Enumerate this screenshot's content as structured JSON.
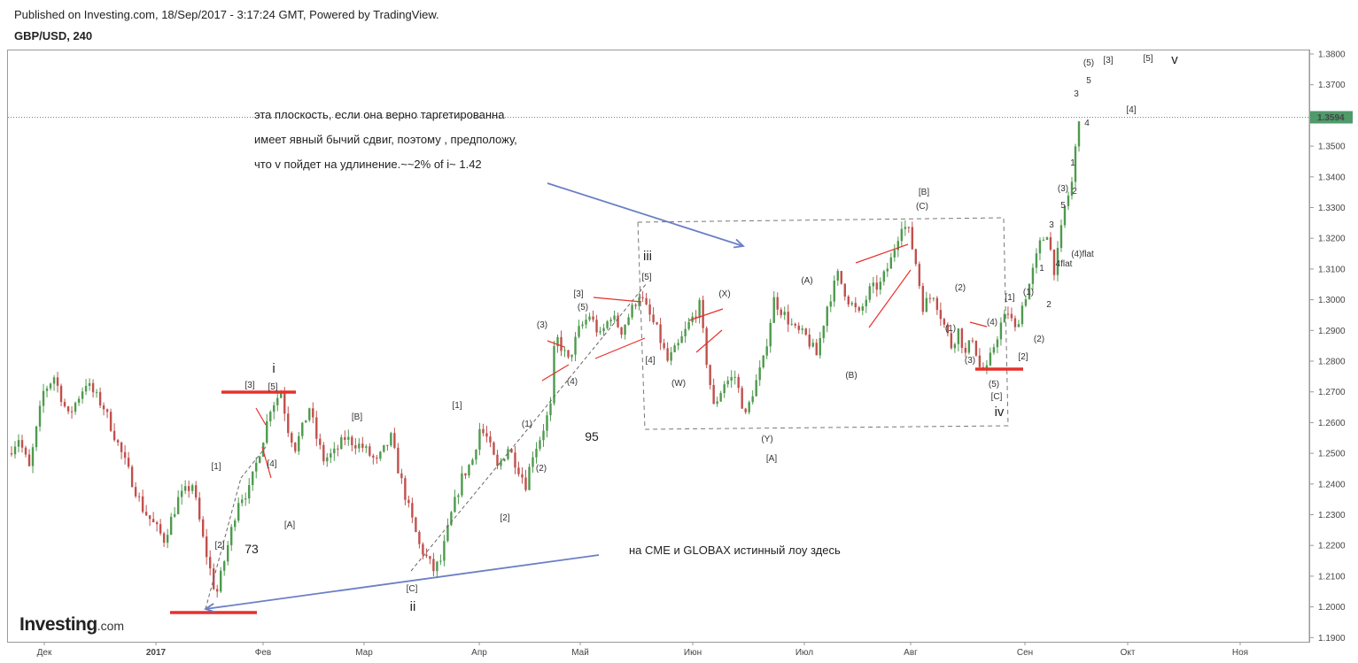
{
  "header": {
    "published": "Published on Investing.com, 18/Sep/2017 - 3:17:24 GMT, Powered by TradingView.",
    "symbol": "GBP/USD, 240"
  },
  "logo": {
    "main": "Investing",
    "suffix": ".com"
  },
  "colors": {
    "candle_up": "#4e9a4e",
    "candle_down": "#c0504d",
    "trend_red": "#e8302a",
    "arrow_blue": "#6b7fc4",
    "box_dash": "#777777",
    "price_line": "#4e9a6a",
    "price_badge": "#4e9a6a"
  },
  "chart_data": {
    "type": "candlestick",
    "ylim": [
      1.1868,
      1.3825
    ],
    "y_ticks": [
      "1.3800",
      "1.3700",
      "1.3600",
      "1.3500",
      "1.3400",
      "1.3300",
      "1.3200",
      "1.3100",
      "1.3000",
      "1.2900",
      "1.2800",
      "1.2700",
      "1.2600",
      "1.2500",
      "1.2400",
      "1.2300",
      "1.2200",
      "1.2100",
      "1.2000",
      "1.1900"
    ],
    "x_ticks": [
      "Дек",
      "2017",
      "Фев",
      "Мар",
      "Апр",
      "Май",
      "Июн",
      "Июл",
      "Авг",
      "Сен",
      "Окт",
      "Ноя"
    ],
    "last_price": "1.3594",
    "price_path": [
      [
        0,
        1.25
      ],
      [
        3,
        1.255
      ],
      [
        6,
        1.245
      ],
      [
        10,
        1.27
      ],
      [
        13,
        1.275
      ],
      [
        17,
        1.262
      ],
      [
        22,
        1.273
      ],
      [
        27,
        1.265
      ],
      [
        32,
        1.25
      ],
      [
        38,
        1.232
      ],
      [
        44,
        1.222
      ],
      [
        48,
        1.235
      ],
      [
        52,
        1.24
      ],
      [
        55,
        1.222
      ],
      [
        58,
        1.207
      ],
      [
        59,
        1.205
      ],
      [
        61,
        1.215
      ],
      [
        65,
        1.235
      ],
      [
        68,
        1.238
      ],
      [
        72,
        1.255
      ],
      [
        74,
        1.265
      ],
      [
        77,
        1.27
      ],
      [
        79,
        1.258
      ],
      [
        81,
        1.252
      ],
      [
        83,
        1.258
      ],
      [
        85,
        1.265
      ],
      [
        87,
        1.255
      ],
      [
        89,
        1.248
      ],
      [
        92,
        1.25
      ],
      [
        95,
        1.255
      ],
      [
        100,
        1.252
      ],
      [
        104,
        1.247
      ],
      [
        108,
        1.255
      ],
      [
        110,
        1.245
      ],
      [
        113,
        1.232
      ],
      [
        116,
        1.22
      ],
      [
        120,
        1.212
      ],
      [
        122,
        1.215
      ],
      [
        125,
        1.23
      ],
      [
        128,
        1.242
      ],
      [
        131,
        1.248
      ],
      [
        133,
        1.258
      ],
      [
        135,
        1.255
      ],
      [
        138,
        1.245
      ],
      [
        141,
        1.252
      ],
      [
        144,
        1.245
      ],
      [
        146,
        1.24
      ],
      [
        148,
        1.25
      ],
      [
        150,
        1.255
      ],
      [
        153,
        1.265
      ],
      [
        154,
        1.283
      ],
      [
        155,
        1.287
      ],
      [
        158,
        1.28
      ],
      [
        161,
        1.29
      ],
      [
        164,
        1.295
      ],
      [
        167,
        1.288
      ],
      [
        170,
        1.295
      ],
      [
        173,
        1.29
      ],
      [
        176,
        1.297
      ],
      [
        178,
        1.302
      ],
      [
        180,
        1.297
      ],
      [
        183,
        1.29
      ],
      [
        186,
        1.28
      ],
      [
        189,
        1.285
      ],
      [
        192,
        1.292
      ],
      [
        195,
        1.298
      ],
      [
        197,
        1.28
      ],
      [
        199,
        1.265
      ],
      [
        202,
        1.273
      ],
      [
        205,
        1.275
      ],
      [
        208,
        1.262
      ],
      [
        210,
        1.27
      ],
      [
        213,
        1.28
      ],
      [
        216,
        1.3
      ],
      [
        219,
        1.295
      ],
      [
        222,
        1.29
      ],
      [
        225,
        1.288
      ],
      [
        228,
        1.282
      ],
      [
        231,
        1.298
      ],
      [
        234,
        1.308
      ],
      [
        237,
        1.3
      ],
      [
        240,
        1.295
      ],
      [
        243,
        1.303
      ],
      [
        246,
        1.305
      ],
      [
        249,
        1.313
      ],
      [
        252,
        1.325
      ],
      [
        254,
        1.322
      ],
      [
        256,
        1.312
      ],
      [
        258,
        1.298
      ],
      [
        261,
        1.302
      ],
      [
        263,
        1.295
      ],
      [
        266,
        1.285
      ],
      [
        268,
        1.29
      ],
      [
        270,
        1.282
      ],
      [
        272,
        1.288
      ],
      [
        274,
        1.278
      ],
      [
        276,
        1.277
      ],
      [
        278,
        1.285
      ],
      [
        280,
        1.292
      ],
      [
        282,
        1.296
      ],
      [
        284,
        1.29
      ],
      [
        286,
        1.298
      ],
      [
        288,
        1.305
      ],
      [
        291,
        1.318
      ],
      [
        293,
        1.322
      ],
      [
        295,
        1.31
      ],
      [
        296,
        1.315
      ],
      [
        298,
        1.33
      ],
      [
        300,
        1.338
      ],
      [
        302,
        1.36
      ]
    ],
    "annotations": [
      "[1]",
      "[2]",
      "[3]",
      "[4]",
      "[5]",
      "i",
      "[A]",
      "[B]",
      "[C]",
      "ii",
      "73",
      "[1]",
      "[2]",
      "(1)",
      "(2)",
      "(3)",
      "(4)",
      "(5)",
      "[3]",
      "[4]",
      "[5]",
      "iii",
      "95",
      "(W)",
      "(X)",
      "(Y)",
      "[A]",
      "(A)",
      "(B)",
      "(C)",
      "[B]",
      "(1)",
      "(2)",
      "(3)",
      "(4)",
      "(5)",
      "[C]",
      "iv",
      "[1]",
      "[2]",
      "(1)",
      "(2)",
      "1",
      "2",
      "3",
      "4flat",
      "(3)",
      "5",
      "(4)flat",
      "1",
      "2",
      "3",
      "4",
      "5",
      "(5)",
      "[3]",
      "[4]",
      "[5]",
      "v"
    ],
    "notes": [
      "эта плоскость, если она верно таргетированна",
      "имеет явный бычий сдвиг, поэтому , предположу,",
      "что v пойдет на удлинение.~~2% of i~ 1.42",
      "на CME и GLOBAX  истинный лоу здесь"
    ]
  }
}
